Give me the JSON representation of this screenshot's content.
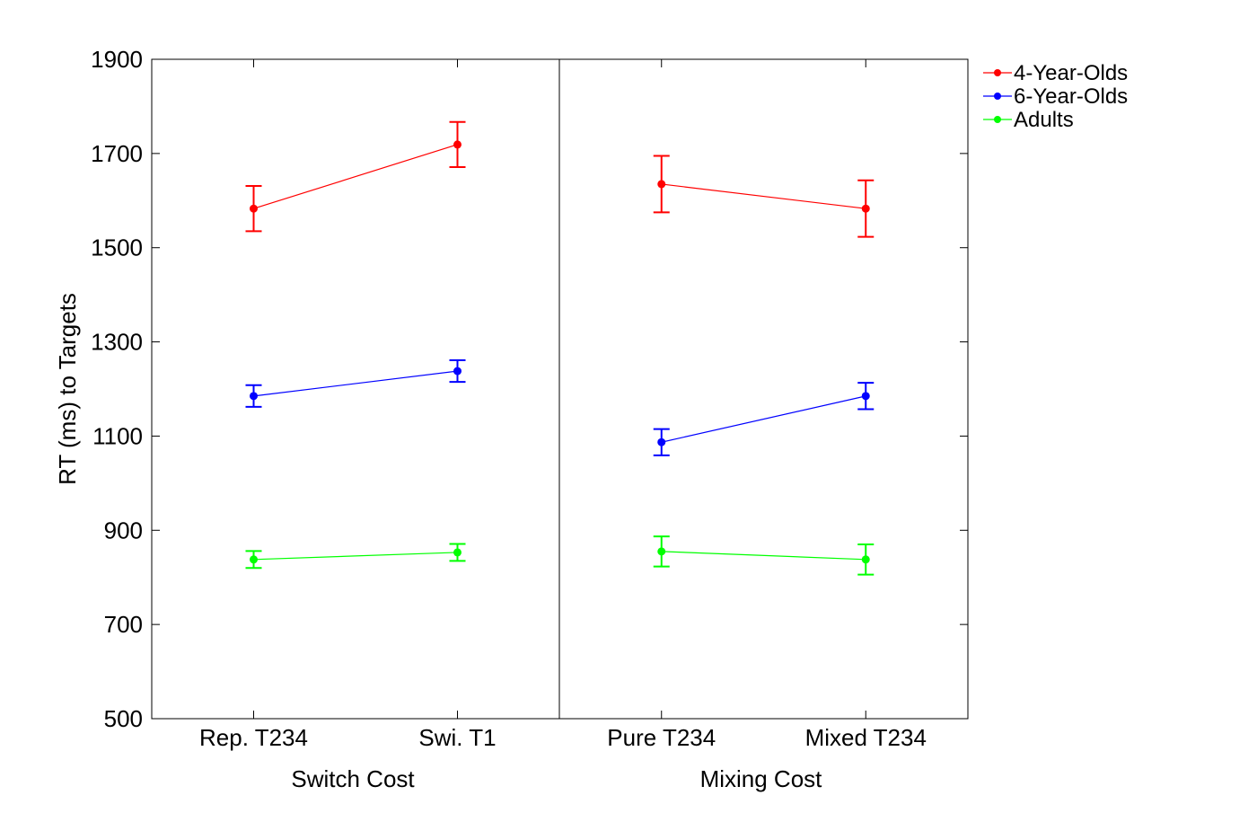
{
  "chart_data": {
    "type": "line",
    "ylabel": "RT (ms) to Targets",
    "ylim": [
      500,
      1900
    ],
    "yticks": [
      500,
      700,
      900,
      1100,
      1300,
      1500,
      1700,
      1900
    ],
    "grid": false,
    "legend_position": "outside-top-right",
    "groups": [
      {
        "name": "Switch Cost",
        "categories": [
          "Rep. T234",
          "Swi. T1"
        ]
      },
      {
        "name": "Mixing Cost",
        "categories": [
          "Pure T234",
          "Mixed T234"
        ]
      }
    ],
    "series": [
      {
        "name": "4-Year-Olds",
        "color": "#ff0000",
        "values": [
          [
            1583,
            1719
          ],
          [
            1635,
            1583
          ]
        ],
        "error": [
          [
            48,
            48
          ],
          [
            60,
            60
          ]
        ]
      },
      {
        "name": "6-Year-Olds",
        "color": "#0000ff",
        "values": [
          [
            1185,
            1238
          ],
          [
            1087,
            1185
          ]
        ],
        "error": [
          [
            23,
            23
          ],
          [
            28,
            28
          ]
        ]
      },
      {
        "name": "Adults",
        "color": "#00ff00",
        "values": [
          [
            838,
            853
          ],
          [
            855,
            838
          ]
        ],
        "error": [
          [
            18,
            18
          ],
          [
            32,
            32
          ]
        ]
      }
    ]
  }
}
